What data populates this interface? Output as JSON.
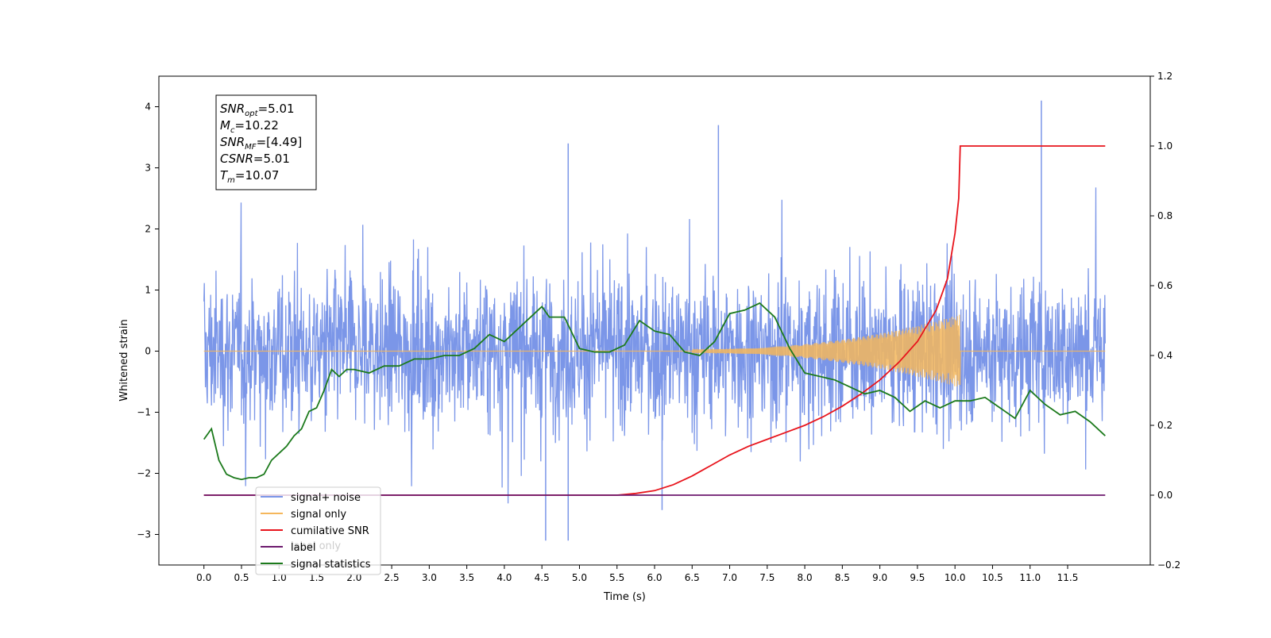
{
  "chart_data": {
    "type": "line",
    "xlabel": "Time (s)",
    "ylabel": "Whitened strain",
    "xticks": [
      0.0,
      0.5,
      1.0,
      1.5,
      2.0,
      2.5,
      3.0,
      3.5,
      4.0,
      4.5,
      5.0,
      5.5,
      6.0,
      6.5,
      7.0,
      7.5,
      8.0,
      8.5,
      9.0,
      9.5,
      10.0,
      10.5,
      11.0,
      11.5
    ],
    "xlim": [
      -0.6,
      12.6
    ],
    "ylim": [
      -3.5,
      4.5
    ],
    "yticks": [
      -3,
      -2,
      -1,
      0,
      1,
      2,
      3,
      4
    ],
    "y2lim": [
      -0.2,
      1.2
    ],
    "y2ticks": [
      -0.2,
      0.0,
      0.2,
      0.4,
      0.6,
      0.8,
      1.0,
      1.2
    ],
    "grid": false,
    "legend_position": "lower-left",
    "annotation": [
      {
        "base": "SNR",
        "sub": "opt",
        "value": "=5.01"
      },
      {
        "base": "M",
        "sub": "c",
        "value": "=10.22"
      },
      {
        "base": "SNR",
        "sub": "MF",
        "value": "=[4.49]"
      },
      {
        "base": "CSNR",
        "sub": "",
        "value": "=5.01"
      },
      {
        "base": "T",
        "sub": "m",
        "value": "=10.07"
      }
    ],
    "series": [
      {
        "name": "signal+ noise",
        "color": "#7b96e8",
        "axis": "left",
        "description_values": {
          "x_range": [
            0.0,
            12.0
          ],
          "typical_envelope": [
            -2.5,
            2.5
          ],
          "max": 4.1,
          "min": -3.1
        }
      },
      {
        "name": "signal only",
        "color": "#f5b75c",
        "axis": "left",
        "chirp": {
          "start": 6.5,
          "merger": 10.07,
          "end": 12.0,
          "peak_amplitude": 0.6
        }
      },
      {
        "name": "cumilative SNR",
        "color": "#e8141c",
        "axis": "right",
        "x": [
          0.0,
          5.5,
          5.75,
          6.0,
          6.25,
          6.5,
          6.75,
          7.0,
          7.25,
          7.5,
          7.75,
          8.0,
          8.25,
          8.5,
          8.75,
          9.0,
          9.25,
          9.5,
          9.75,
          9.9,
          10.0,
          10.05,
          10.07,
          12.0
        ],
        "values": [
          0.0,
          0.0,
          0.005,
          0.013,
          0.03,
          0.055,
          0.085,
          0.115,
          0.14,
          0.16,
          0.18,
          0.2,
          0.225,
          0.255,
          0.29,
          0.33,
          0.38,
          0.44,
          0.53,
          0.62,
          0.75,
          0.85,
          1.0,
          1.0
        ]
      },
      {
        "name": "label",
        "color": "#6d1a6e",
        "axis": "right",
        "x": [
          0.0,
          12.0
        ],
        "values": [
          0.0,
          0.0
        ]
      },
      {
        "name": "signal statistics",
        "color": "#1c7a1c",
        "axis": "right",
        "x": [
          0.0,
          0.1,
          0.2,
          0.3,
          0.4,
          0.5,
          0.6,
          0.7,
          0.8,
          0.9,
          1.0,
          1.1,
          1.2,
          1.3,
          1.4,
          1.5,
          1.6,
          1.7,
          1.8,
          1.9,
          2.0,
          2.2,
          2.4,
          2.5,
          2.6,
          2.8,
          3.0,
          3.2,
          3.4,
          3.5,
          3.6,
          3.8,
          4.0,
          4.2,
          4.4,
          4.5,
          4.6,
          4.8,
          5.0,
          5.2,
          5.4,
          5.6,
          5.8,
          6.0,
          6.2,
          6.4,
          6.6,
          6.8,
          7.0,
          7.2,
          7.4,
          7.6,
          7.8,
          8.0,
          8.2,
          8.4,
          8.6,
          8.8,
          9.0,
          9.2,
          9.4,
          9.6,
          9.8,
          10.0,
          10.2,
          10.4,
          10.6,
          10.8,
          11.0,
          11.2,
          11.4,
          11.6,
          11.8,
          12.0
        ],
        "values": [
          0.16,
          0.19,
          0.1,
          0.06,
          0.05,
          0.045,
          0.05,
          0.05,
          0.06,
          0.1,
          0.12,
          0.14,
          0.17,
          0.19,
          0.24,
          0.25,
          0.3,
          0.36,
          0.34,
          0.36,
          0.36,
          0.35,
          0.37,
          0.37,
          0.37,
          0.39,
          0.39,
          0.4,
          0.4,
          0.41,
          0.42,
          0.46,
          0.44,
          0.48,
          0.52,
          0.54,
          0.51,
          0.51,
          0.42,
          0.41,
          0.41,
          0.43,
          0.5,
          0.47,
          0.46,
          0.41,
          0.4,
          0.44,
          0.52,
          0.53,
          0.55,
          0.51,
          0.42,
          0.35,
          0.34,
          0.33,
          0.31,
          0.29,
          0.3,
          0.28,
          0.24,
          0.27,
          0.25,
          0.27,
          0.27,
          0.28,
          0.25,
          0.22,
          0.3,
          0.26,
          0.23,
          0.24,
          0.21,
          0.17
        ]
      }
    ]
  },
  "legend_overlay_text": "label only"
}
